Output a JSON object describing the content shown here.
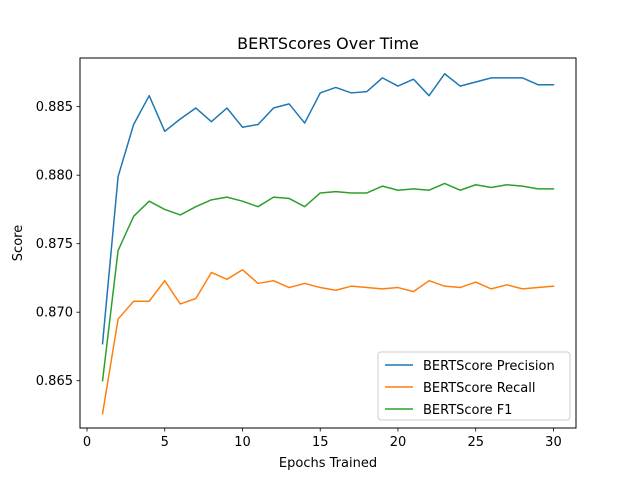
{
  "chart_data": {
    "type": "line",
    "title": "BERTScores Over Time",
    "xlabel": "Epochs Trained",
    "ylabel": "Score",
    "xlim": [
      -0.45,
      31.45
    ],
    "ylim": [
      0.86155,
      0.88855
    ],
    "xticks": [
      0,
      5,
      10,
      15,
      20,
      25,
      30
    ],
    "yticks": [
      0.865,
      0.87,
      0.875,
      0.88,
      0.885
    ],
    "ytick_labels": [
      "0.865",
      "0.870",
      "0.875",
      "0.880",
      "0.885"
    ],
    "grid": false,
    "legend_position": "lower-right",
    "x": [
      1,
      2,
      3,
      4,
      5,
      6,
      7,
      8,
      9,
      10,
      11,
      12,
      13,
      14,
      15,
      16,
      17,
      18,
      19,
      20,
      21,
      22,
      23,
      24,
      25,
      26,
      27,
      28,
      29,
      30
    ],
    "series": [
      {
        "name": "BERTScore Precision",
        "color": "#1f77b4",
        "values": [
          0.8677,
          0.8799,
          0.8837,
          0.8858,
          0.8832,
          0.8841,
          0.8849,
          0.8839,
          0.8849,
          0.8835,
          0.8837,
          0.8849,
          0.8852,
          0.8838,
          0.886,
          0.8864,
          0.886,
          0.8861,
          0.8871,
          0.8865,
          0.887,
          0.8858,
          0.8874,
          0.8865,
          0.8868,
          0.8871,
          0.8871,
          0.8871,
          0.8866,
          0.8866
        ]
      },
      {
        "name": "BERTScore Recall",
        "color": "#ff7f0e",
        "values": [
          0.8626,
          0.8695,
          0.8708,
          0.8708,
          0.8723,
          0.8706,
          0.871,
          0.8729,
          0.8724,
          0.8731,
          0.8721,
          0.8723,
          0.8718,
          0.8721,
          0.8718,
          0.8716,
          0.8719,
          0.8718,
          0.8717,
          0.8718,
          0.8715,
          0.8723,
          0.8719,
          0.8718,
          0.8722,
          0.8717,
          0.872,
          0.8717,
          0.8718,
          0.8719
        ]
      },
      {
        "name": "BERTScore F1",
        "color": "#2ca02c",
        "values": [
          0.865,
          0.8745,
          0.877,
          0.8781,
          0.8775,
          0.8771,
          0.8777,
          0.8782,
          0.8784,
          0.8781,
          0.8777,
          0.8784,
          0.8783,
          0.8777,
          0.8787,
          0.8788,
          0.8787,
          0.8787,
          0.8792,
          0.8789,
          0.879,
          0.8789,
          0.8794,
          0.8789,
          0.8793,
          0.8791,
          0.8793,
          0.8792,
          0.879,
          0.879
        ]
      }
    ]
  }
}
